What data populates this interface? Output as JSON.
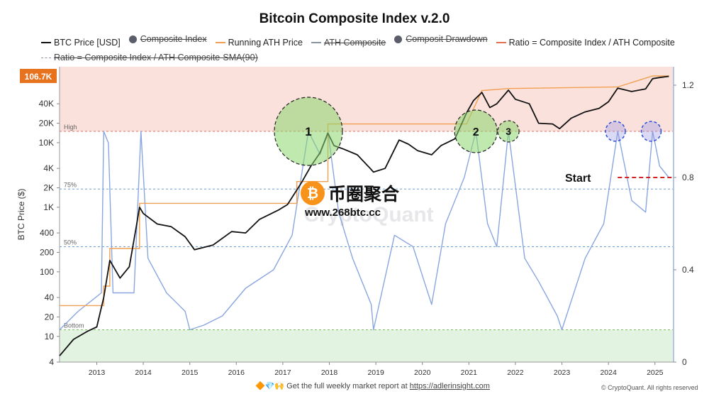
{
  "header": {
    "title": "Bitcoin Composite Index v.2.0"
  },
  "legend": [
    {
      "label": "BTC Price [USD]",
      "kind": "line",
      "color": "#111111",
      "struck": false
    },
    {
      "label": "Composite Index",
      "kind": "dot",
      "color": "#5b5e6a",
      "struck": true
    },
    {
      "label": "Running ATH Price",
      "kind": "line",
      "color": "#f0a050",
      "struck": false
    },
    {
      "label": "ATH Composite",
      "kind": "line",
      "color": "#8a93a4",
      "struck": true
    },
    {
      "label": "Composit Drawdown",
      "kind": "dot",
      "color": "#5b5e6a",
      "struck": true
    },
    {
      "label": "Ratio = Composite Index / ATH  Composite",
      "kind": "line",
      "color": "#e07050",
      "struck": false
    },
    {
      "label": "Ratio = Composite Index / ATH  Composite-SMA(90)",
      "kind": "dash",
      "color": "#8a93a4",
      "struck": true
    }
  ],
  "chart_data": {
    "type": "line",
    "title": "Bitcoin Composite Index v.2.0",
    "ylabel": "BTC Price ($)",
    "y_scale": "log",
    "ylim": [
      4,
      150000
    ],
    "y_ticks": [
      "4",
      "10",
      "20",
      "40",
      "100",
      "200",
      "400",
      "1K",
      "2K",
      "4K",
      "10K",
      "20K",
      "40K"
    ],
    "y_tick_values": [
      4,
      10,
      20,
      40,
      100,
      200,
      400,
      1000,
      2000,
      4000,
      10000,
      20000,
      40000
    ],
    "y2_ticks": [
      "0",
      "0.4",
      "0.8",
      "1.2"
    ],
    "y2_tick_values": [
      0,
      0.4,
      0.8,
      1.2
    ],
    "y2lim": [
      0,
      1.28
    ],
    "x_ticks": [
      "2013",
      "2014",
      "2015",
      "2016",
      "2017",
      "2018",
      "2019",
      "2020",
      "2021",
      "2022",
      "2023",
      "2024",
      "2025"
    ],
    "xlim": [
      2012.2,
      2025.4
    ],
    "current_price_label": "106.7K",
    "zones": [
      {
        "label": "High",
        "ratio": 1.0,
        "color": "#d97066"
      },
      {
        "label": "75%",
        "ratio": 0.75,
        "color": "#6aa0d6"
      },
      {
        "label": "50%",
        "ratio": 0.5,
        "color": "#6aa0d6"
      },
      {
        "label": "Bottom",
        "ratio": 0.14,
        "color": "#7bbf5a"
      }
    ],
    "annotations": [
      {
        "text": "1",
        "x": 2017.55,
        "ratio": 1.0
      },
      {
        "text": "2",
        "x": 2021.15,
        "ratio": 1.0
      },
      {
        "text": "3",
        "x": 2021.85,
        "ratio": 1.0
      },
      {
        "text": "Start",
        "x": 2024.2,
        "ratio": 0.8
      }
    ],
    "series": [
      {
        "name": "BTC Price [USD]",
        "color": "#111111",
        "x": [
          2012.2,
          2012.5,
          2012.8,
          2013.0,
          2013.15,
          2013.28,
          2013.5,
          2013.7,
          2013.85,
          2013.92,
          2014.0,
          2014.3,
          2014.6,
          2014.9,
          2015.1,
          2015.5,
          2015.9,
          2016.2,
          2016.5,
          2016.9,
          2017.1,
          2017.4,
          2017.6,
          2017.8,
          2017.97,
          2018.1,
          2018.3,
          2018.6,
          2018.85,
          2018.95,
          2019.2,
          2019.5,
          2019.7,
          2019.9,
          2020.2,
          2020.4,
          2020.7,
          2020.95,
          2021.1,
          2021.28,
          2021.45,
          2021.6,
          2021.85,
          2022.0,
          2022.3,
          2022.5,
          2022.8,
          2022.95,
          2023.2,
          2023.5,
          2023.8,
          2024.0,
          2024.2,
          2024.5,
          2024.8,
          2024.95,
          2025.1,
          2025.3
        ],
        "values": [
          5,
          9,
          12,
          14,
          40,
          150,
          80,
          120,
          500,
          1000,
          800,
          550,
          500,
          350,
          220,
          260,
          420,
          400,
          650,
          900,
          1100,
          2400,
          4300,
          7000,
          14000,
          9000,
          8000,
          6500,
          4200,
          3500,
          4000,
          11000,
          9500,
          7500,
          6500,
          9000,
          11500,
          29000,
          45000,
          60000,
          35000,
          40000,
          65000,
          47000,
          40000,
          20000,
          19500,
          16500,
          24000,
          30000,
          34000,
          43000,
          70000,
          62000,
          68000,
          98000,
          102000,
          106700
        ]
      },
      {
        "name": "Running ATH Price",
        "color": "#f0a050",
        "x": [
          2012.2,
          2013.15,
          2013.15,
          2013.28,
          2013.28,
          2013.92,
          2013.92,
          2017.3,
          2017.3,
          2017.97,
          2017.97,
          2020.95,
          2021.28,
          2021.28,
          2021.85,
          2021.85,
          2024.2,
          2024.2,
          2024.95,
          2025.3
        ],
        "values": [
          30,
          30,
          60,
          60,
          230,
          230,
          1150,
          1150,
          2500,
          2500,
          19500,
          19500,
          64000,
          64000,
          69000,
          69000,
          73000,
          73000,
          108000,
          108000
        ]
      },
      {
        "name": "Ratio = Composite Index / ATH  Composite",
        "color": "#8aa6e0",
        "x": [
          2012.2,
          2012.6,
          2013.1,
          2013.15,
          2013.25,
          2013.35,
          2013.8,
          2013.95,
          2014.1,
          2014.5,
          2014.9,
          2015.0,
          2015.3,
          2015.7,
          2016.2,
          2016.8,
          2017.2,
          2017.55,
          2017.8,
          2017.97,
          2018.2,
          2018.5,
          2018.9,
          2018.95,
          2019.4,
          2019.8,
          2020.2,
          2020.5,
          2020.9,
          2021.15,
          2021.4,
          2021.6,
          2021.85,
          2022.2,
          2022.5,
          2022.9,
          2023.0,
          2023.5,
          2023.9,
          2024.2,
          2024.5,
          2024.8,
          2024.95,
          2025.1,
          2025.3
        ],
        "values": [
          0.14,
          0.22,
          0.3,
          1.0,
          0.95,
          0.3,
          0.3,
          1.0,
          0.45,
          0.3,
          0.22,
          0.14,
          0.16,
          0.2,
          0.32,
          0.4,
          0.55,
          1.0,
          0.9,
          1.0,
          0.65,
          0.45,
          0.25,
          0.14,
          0.55,
          0.5,
          0.25,
          0.6,
          0.8,
          1.0,
          0.6,
          0.5,
          1.0,
          0.45,
          0.35,
          0.2,
          0.14,
          0.45,
          0.6,
          1.0,
          0.7,
          0.65,
          1.0,
          0.85,
          0.8
        ]
      }
    ]
  },
  "watermark": {
    "brand_cn": "币圈聚合",
    "brand_url": "www.268btc.cc",
    "faint": "CryptoQuant"
  },
  "footer": {
    "text": "Get the full weekly market report at ",
    "url": "https://adlerinsight.com",
    "copyright": "© CryptoQuant. All rights reserved"
  }
}
